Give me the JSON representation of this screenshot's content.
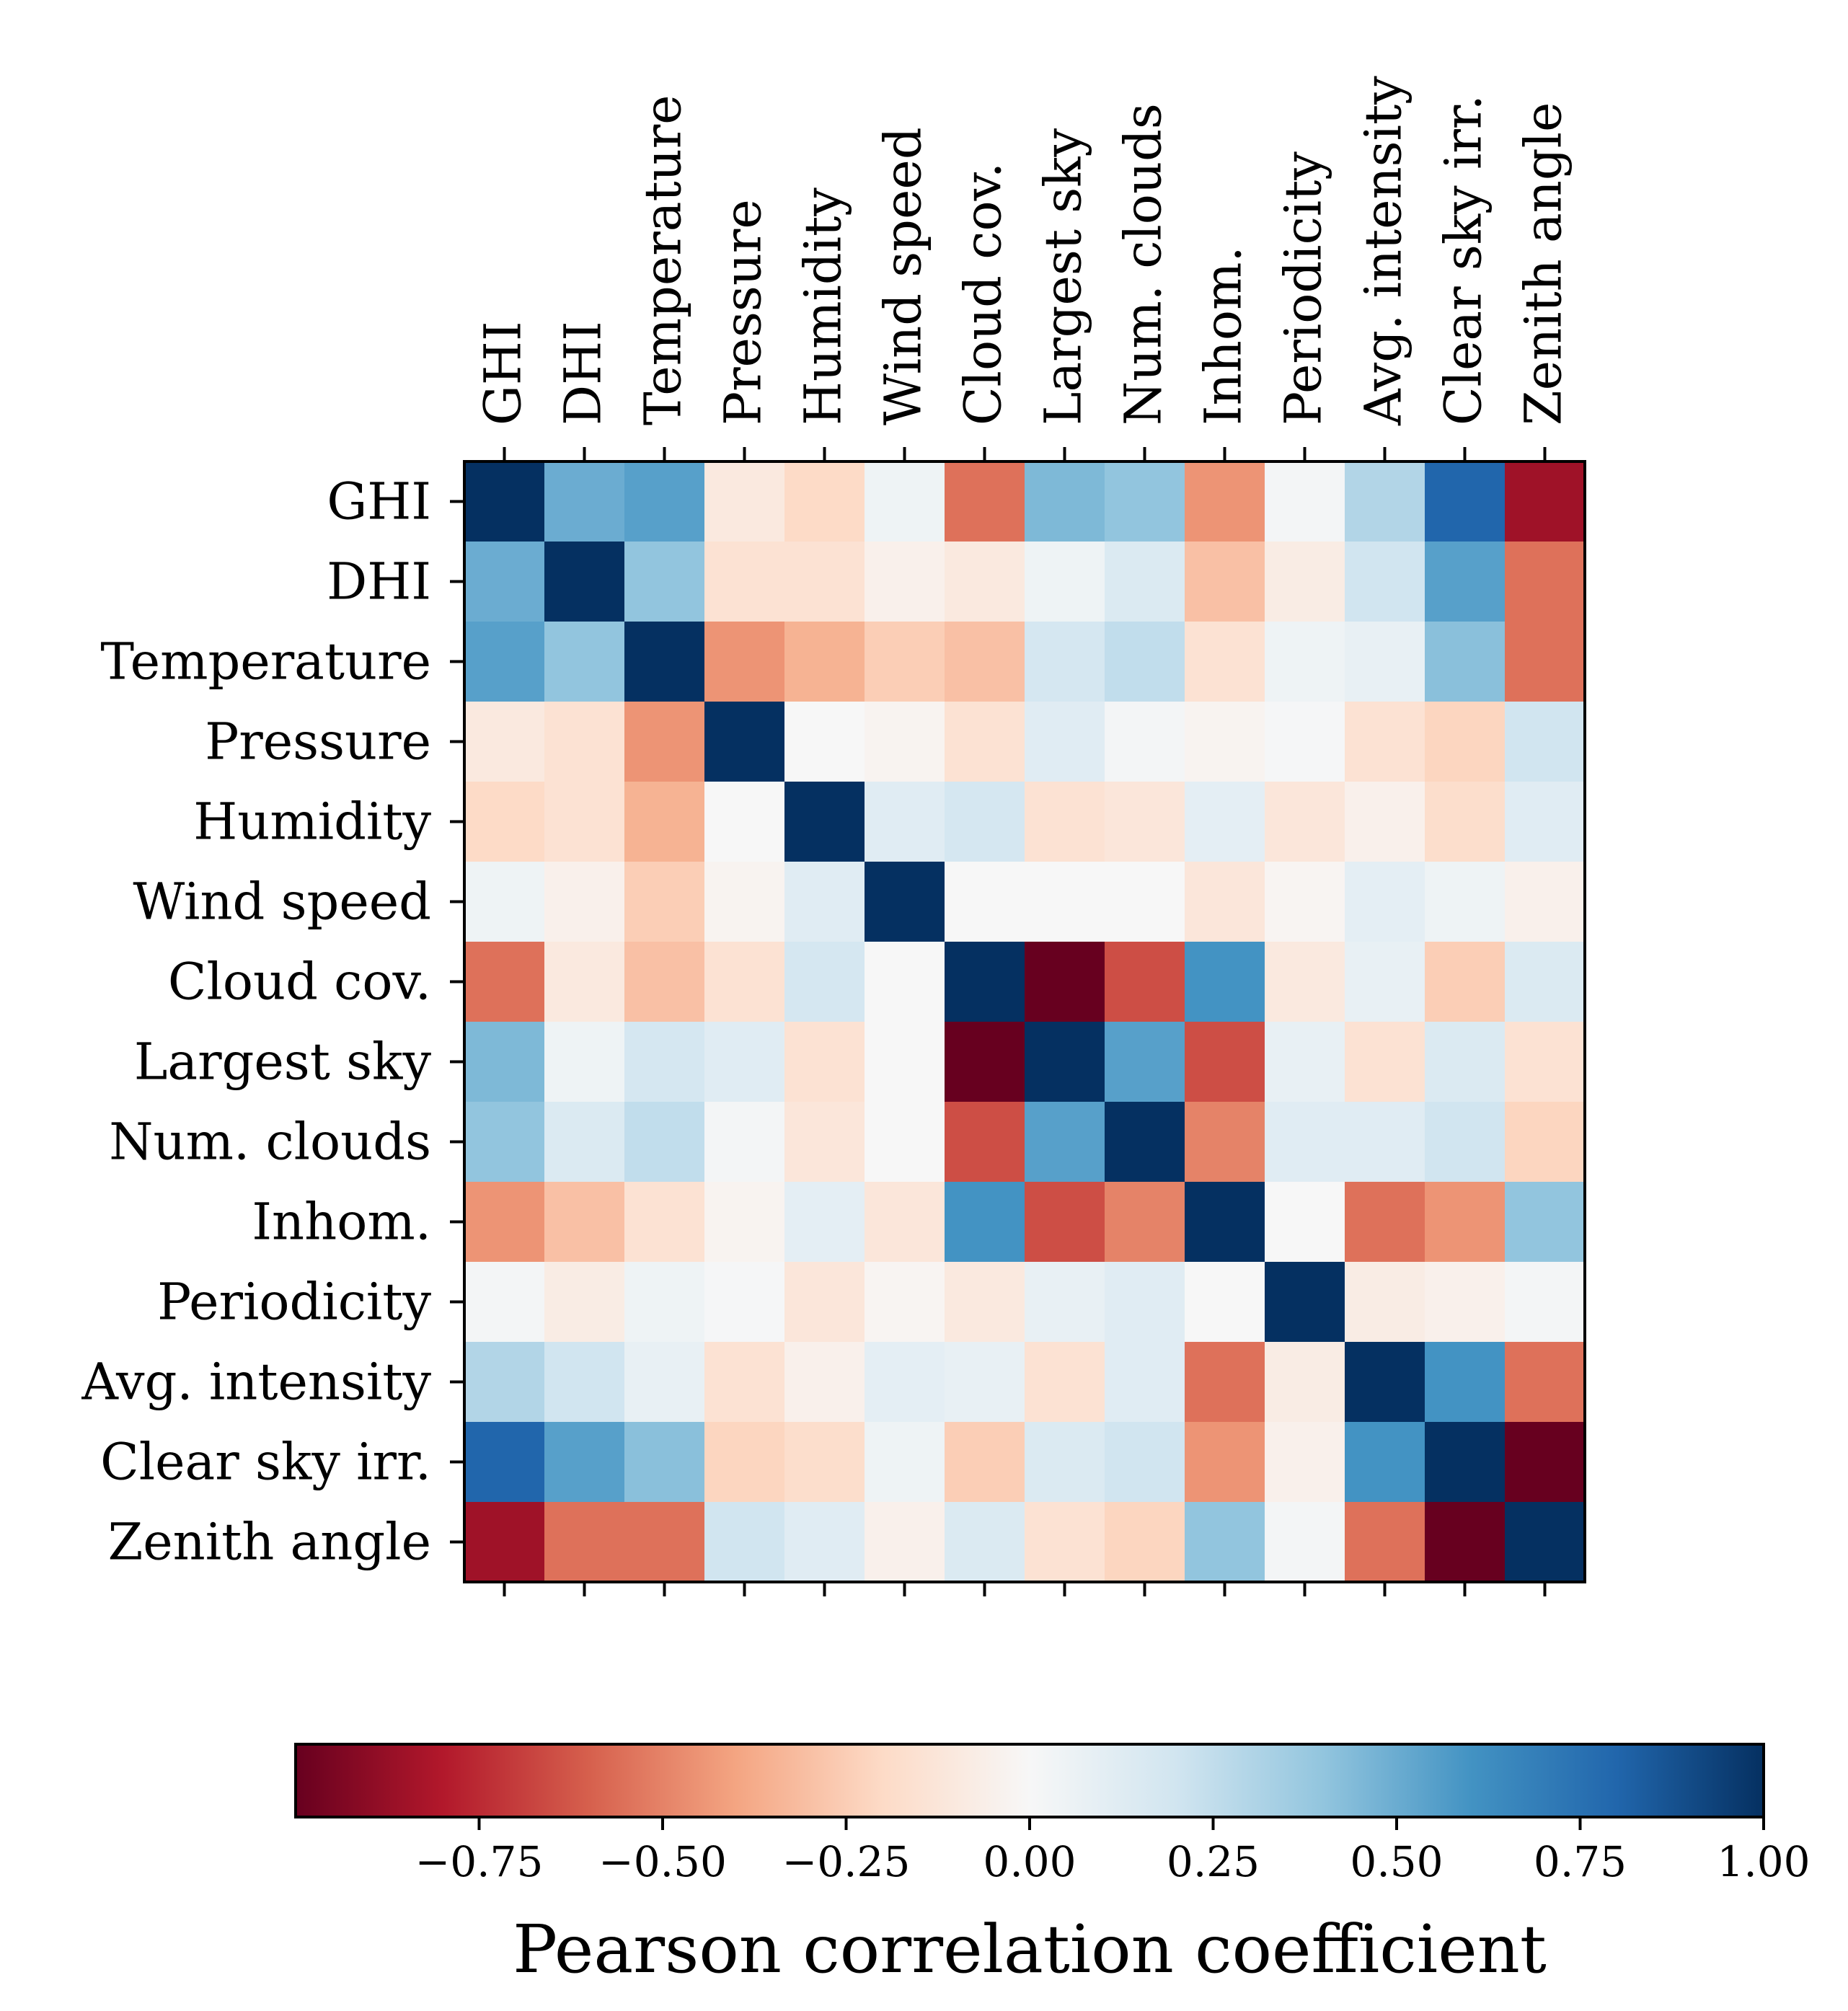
{
  "chart_data": {
    "type": "heatmap",
    "title": "",
    "x_labels": [
      "GHI",
      "DHI",
      "Temperature",
      "Pressure",
      "Humidity",
      "Wind speed",
      "Cloud cov.",
      "Largest sky",
      "Num. clouds",
      "Inhom.",
      "Periodicity",
      "Avg. intensity",
      "Clear sky irr.",
      "Zenith angle"
    ],
    "y_labels": [
      "GHI",
      "DHI",
      "Temperature",
      "Pressure",
      "Humidity",
      "Wind speed",
      "Cloud cov.",
      "Largest sky",
      "Num. clouds",
      "Inhom.",
      "Periodicity",
      "Avg. intensity",
      "Clear sky irr.",
      "Zenith angle"
    ],
    "x_label_position": "top",
    "matrix": [
      [
        1.0,
        0.5,
        0.55,
        -0.1,
        -0.2,
        0.05,
        -0.55,
        0.45,
        0.4,
        -0.45,
        0.02,
        0.3,
        0.8,
        -0.85
      ],
      [
        0.5,
        1.0,
        0.4,
        -0.15,
        -0.15,
        -0.05,
        -0.1,
        0.05,
        0.15,
        -0.3,
        -0.08,
        0.2,
        0.55,
        -0.55
      ],
      [
        0.55,
        0.4,
        1.0,
        -0.45,
        -0.35,
        -0.25,
        -0.3,
        0.18,
        0.25,
        -0.15,
        0.05,
        0.08,
        0.42,
        -0.55
      ],
      [
        -0.1,
        -0.15,
        -0.45,
        1.0,
        0.0,
        -0.03,
        -0.15,
        0.12,
        0.02,
        -0.03,
        0.01,
        -0.15,
        -0.22,
        0.2
      ],
      [
        -0.2,
        -0.15,
        -0.35,
        0.0,
        1.0,
        0.12,
        0.18,
        -0.15,
        -0.12,
        0.1,
        -0.12,
        -0.05,
        -0.18,
        0.12
      ],
      [
        0.05,
        -0.05,
        -0.25,
        -0.03,
        0.12,
        1.0,
        0.0,
        0.0,
        0.0,
        -0.12,
        -0.02,
        0.1,
        0.05,
        -0.05
      ],
      [
        -0.55,
        -0.1,
        -0.3,
        -0.15,
        0.18,
        0.0,
        1.0,
        -1.0,
        -0.65,
        0.6,
        -0.1,
        0.08,
        -0.25,
        0.15
      ],
      [
        0.45,
        0.05,
        0.18,
        0.12,
        -0.15,
        0.0,
        -1.0,
        1.0,
        0.55,
        -0.65,
        0.08,
        -0.15,
        0.15,
        -0.15
      ],
      [
        0.4,
        0.15,
        0.25,
        0.02,
        -0.12,
        0.0,
        -0.65,
        0.55,
        1.0,
        -0.5,
        0.12,
        0.12,
        0.2,
        -0.22
      ],
      [
        -0.45,
        -0.3,
        -0.15,
        -0.03,
        0.1,
        -0.12,
        0.6,
        -0.65,
        -0.5,
        1.0,
        0.0,
        -0.55,
        -0.45,
        0.4
      ],
      [
        0.02,
        -0.08,
        0.05,
        0.01,
        -0.12,
        -0.02,
        -0.1,
        0.08,
        0.12,
        0.0,
        1.0,
        -0.08,
        -0.05,
        0.02
      ],
      [
        0.3,
        0.2,
        0.08,
        -0.15,
        -0.05,
        0.1,
        0.08,
        -0.15,
        0.12,
        -0.55,
        -0.08,
        1.0,
        0.6,
        -0.55
      ],
      [
        0.8,
        0.55,
        0.42,
        -0.22,
        -0.18,
        0.05,
        -0.25,
        0.15,
        0.2,
        -0.45,
        -0.05,
        0.6,
        1.0,
        -1.0
      ],
      [
        -0.85,
        -0.55,
        -0.55,
        0.2,
        0.12,
        -0.05,
        0.15,
        -0.15,
        -0.22,
        0.4,
        0.02,
        -0.55,
        -1.0,
        1.0
      ]
    ],
    "colorbar": {
      "label": "Pearson correlation coefficient",
      "range": [
        -1,
        1
      ],
      "ticks": [
        -0.75,
        -0.5,
        -0.25,
        0.0,
        0.25,
        0.5,
        0.75,
        1.0
      ],
      "tick_labels": [
        "−0.75",
        "−0.50",
        "−0.25",
        "0.00",
        "0.25",
        "0.50",
        "0.75",
        "1.00"
      ],
      "colormap": "RdBu",
      "orientation": "horizontal",
      "position": "bottom"
    }
  }
}
